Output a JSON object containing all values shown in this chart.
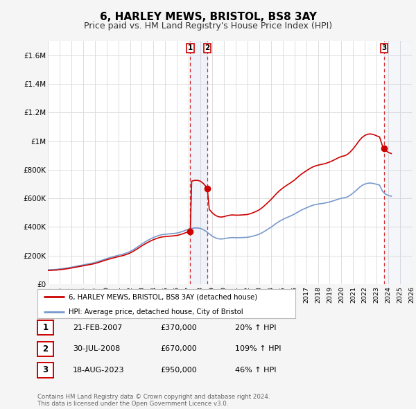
{
  "title": "6, HARLEY MEWS, BRISTOL, BS8 3AY",
  "subtitle": "Price paid vs. HM Land Registry's House Price Index (HPI)",
  "title_fontsize": 11,
  "subtitle_fontsize": 9,
  "ylim": [
    0,
    1700000
  ],
  "yticks": [
    0,
    200000,
    400000,
    600000,
    800000,
    1000000,
    1200000,
    1400000,
    1600000
  ],
  "ytick_labels": [
    "£0",
    "£200K",
    "£400K",
    "£600K",
    "£800K",
    "£1M",
    "£1.2M",
    "£1.4M",
    "£1.6M"
  ],
  "background_color": "#f5f5f5",
  "plot_bg_color": "#ffffff",
  "grid_color": "#dddddd",
  "red_line_color": "#cc0000",
  "blue_line_color": "#7799cc",
  "shade_color": "#ddeeff",
  "transactions": [
    {
      "label": "1",
      "date": "21-FEB-2007",
      "price": 370000,
      "year": 2007.13,
      "hpi_pct": "20%"
    },
    {
      "label": "2",
      "date": "30-JUL-2008",
      "price": 670000,
      "year": 2008.58,
      "hpi_pct": "109%"
    },
    {
      "label": "3",
      "date": "18-AUG-2023",
      "price": 950000,
      "year": 2023.63,
      "hpi_pct": "46%"
    }
  ],
  "legend_label_red": "6, HARLEY MEWS, BRISTOL, BS8 3AY (detached house)",
  "legend_label_blue": "HPI: Average price, detached house, City of Bristol",
  "footer": "Contains HM Land Registry data © Crown copyright and database right 2024.\nThis data is licensed under the Open Government Licence v3.0.",
  "hpi_data_years": [
    1995.0,
    1995.25,
    1995.5,
    1995.75,
    1996.0,
    1996.25,
    1996.5,
    1996.75,
    1997.0,
    1997.25,
    1997.5,
    1997.75,
    1998.0,
    1998.25,
    1998.5,
    1998.75,
    1999.0,
    1999.25,
    1999.5,
    1999.75,
    2000.0,
    2000.25,
    2000.5,
    2000.75,
    2001.0,
    2001.25,
    2001.5,
    2001.75,
    2002.0,
    2002.25,
    2002.5,
    2002.75,
    2003.0,
    2003.25,
    2003.5,
    2003.75,
    2004.0,
    2004.25,
    2004.5,
    2004.75,
    2005.0,
    2005.25,
    2005.5,
    2005.75,
    2006.0,
    2006.25,
    2006.5,
    2006.75,
    2007.0,
    2007.25,
    2007.5,
    2007.75,
    2008.0,
    2008.25,
    2008.5,
    2008.75,
    2009.0,
    2009.25,
    2009.5,
    2009.75,
    2010.0,
    2010.25,
    2010.5,
    2010.75,
    2011.0,
    2011.25,
    2011.5,
    2011.75,
    2012.0,
    2012.25,
    2012.5,
    2012.75,
    2013.0,
    2013.25,
    2013.5,
    2013.75,
    2014.0,
    2014.25,
    2014.5,
    2014.75,
    2015.0,
    2015.25,
    2015.5,
    2015.75,
    2016.0,
    2016.25,
    2016.5,
    2016.75,
    2017.0,
    2017.25,
    2017.5,
    2017.75,
    2018.0,
    2018.25,
    2018.5,
    2018.75,
    2019.0,
    2019.25,
    2019.5,
    2019.75,
    2020.0,
    2020.25,
    2020.5,
    2020.75,
    2021.0,
    2021.25,
    2021.5,
    2021.75,
    2022.0,
    2022.25,
    2022.5,
    2022.75,
    2023.0,
    2023.25,
    2023.5,
    2023.75,
    2024.0,
    2024.25
  ],
  "hpi_data_values": [
    101000,
    102000,
    103000,
    104000,
    107000,
    109000,
    112000,
    115000,
    119000,
    123000,
    127000,
    131000,
    135000,
    139000,
    143000,
    147000,
    152000,
    158000,
    165000,
    172000,
    179000,
    185000,
    191000,
    197000,
    202000,
    207000,
    213000,
    220000,
    229000,
    240000,
    253000,
    267000,
    281000,
    294000,
    306000,
    317000,
    327000,
    335000,
    342000,
    347000,
    349000,
    351000,
    353000,
    355000,
    358000,
    363000,
    370000,
    378000,
    386000,
    390000,
    393000,
    393000,
    390000,
    381000,
    368000,
    352000,
    336000,
    325000,
    318000,
    316000,
    318000,
    322000,
    325000,
    326000,
    325000,
    325000,
    326000,
    327000,
    328000,
    332000,
    337000,
    343000,
    350000,
    360000,
    372000,
    385000,
    398000,
    413000,
    428000,
    441000,
    452000,
    462000,
    471000,
    480000,
    490000,
    502000,
    514000,
    524000,
    533000,
    542000,
    550000,
    556000,
    560000,
    563000,
    566000,
    570000,
    575000,
    581000,
    588000,
    595000,
    601000,
    604000,
    610000,
    622000,
    637000,
    655000,
    674000,
    690000,
    700000,
    706000,
    707000,
    704000,
    698000,
    693000,
    650000,
    630000,
    620000,
    615000
  ],
  "xmin": 1995,
  "xmax": 2026
}
